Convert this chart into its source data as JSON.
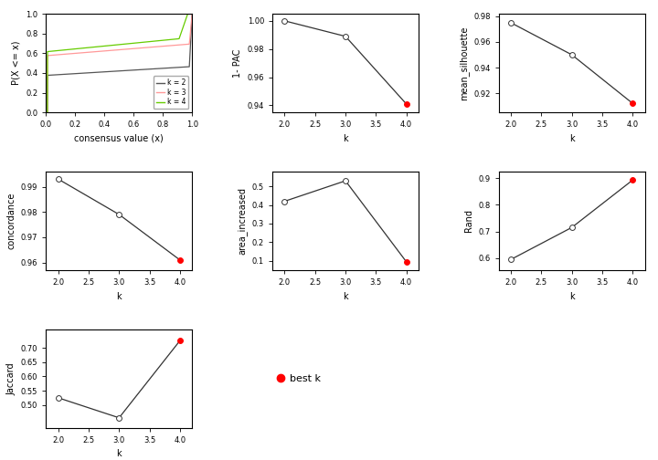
{
  "ecdf": {
    "xlabel": "consensus value (x)",
    "ylabel": "P(X <= x)",
    "xlim": [
      0,
      1
    ],
    "ylim": [
      0,
      1
    ],
    "k2_color": "#555555",
    "k3_color": "#ff9999",
    "k4_color": "#66cc00",
    "legend_labels": [
      "k = 2",
      "k = 3",
      "k = 4"
    ]
  },
  "pac": {
    "xlabel": "k",
    "ylabel": "1- PAC",
    "k": [
      2,
      3,
      4
    ],
    "y": [
      1.0,
      0.989,
      0.941
    ],
    "best_k": 4,
    "ylim": [
      0.935,
      1.005
    ],
    "yticks": [
      0.94,
      0.96,
      0.98,
      1.0
    ]
  },
  "silhouette": {
    "xlabel": "k",
    "ylabel": "mean_silhouette",
    "k": [
      2,
      3,
      4
    ],
    "y": [
      0.975,
      0.95,
      0.912
    ],
    "best_k": 4,
    "ylim": [
      0.905,
      0.982
    ],
    "yticks": [
      0.92,
      0.94,
      0.96,
      0.98
    ]
  },
  "concordance": {
    "xlabel": "k",
    "ylabel": "concordance",
    "k": [
      2,
      3,
      4
    ],
    "y": [
      0.993,
      0.979,
      0.961
    ],
    "best_k": 4,
    "ylim": [
      0.957,
      0.996
    ],
    "yticks": [
      0.96,
      0.97,
      0.975,
      0.98,
      0.985,
      0.99
    ]
  },
  "area_increased": {
    "xlabel": "k",
    "ylabel": "area_increased",
    "k": [
      2,
      3,
      4
    ],
    "y": [
      0.42,
      0.53,
      0.095
    ],
    "best_k": 4,
    "ylim": [
      0.05,
      0.58
    ],
    "yticks": [
      0.1,
      0.2,
      0.3,
      0.4,
      0.5
    ]
  },
  "rand": {
    "xlabel": "k",
    "ylabel": "Rand",
    "k": [
      2,
      3,
      4
    ],
    "y": [
      0.595,
      0.715,
      0.893
    ],
    "best_k": 4,
    "ylim": [
      0.555,
      0.925
    ],
    "yticks": [
      0.6,
      0.7,
      0.8,
      0.9
    ]
  },
  "jaccard": {
    "xlabel": "k",
    "ylabel": "Jaccard",
    "k": [
      2,
      3,
      4
    ],
    "y": [
      0.525,
      0.455,
      0.725
    ],
    "best_k": 4,
    "ylim": [
      0.42,
      0.765
    ],
    "yticks": [
      0.5,
      0.55,
      0.6,
      0.65,
      0.7
    ]
  },
  "legend": {
    "best_k_label": "best k",
    "best_k_color": "red"
  },
  "background_color": "#ffffff",
  "line_color": "#333333",
  "point_open_color": "white",
  "point_edge_color": "#333333"
}
